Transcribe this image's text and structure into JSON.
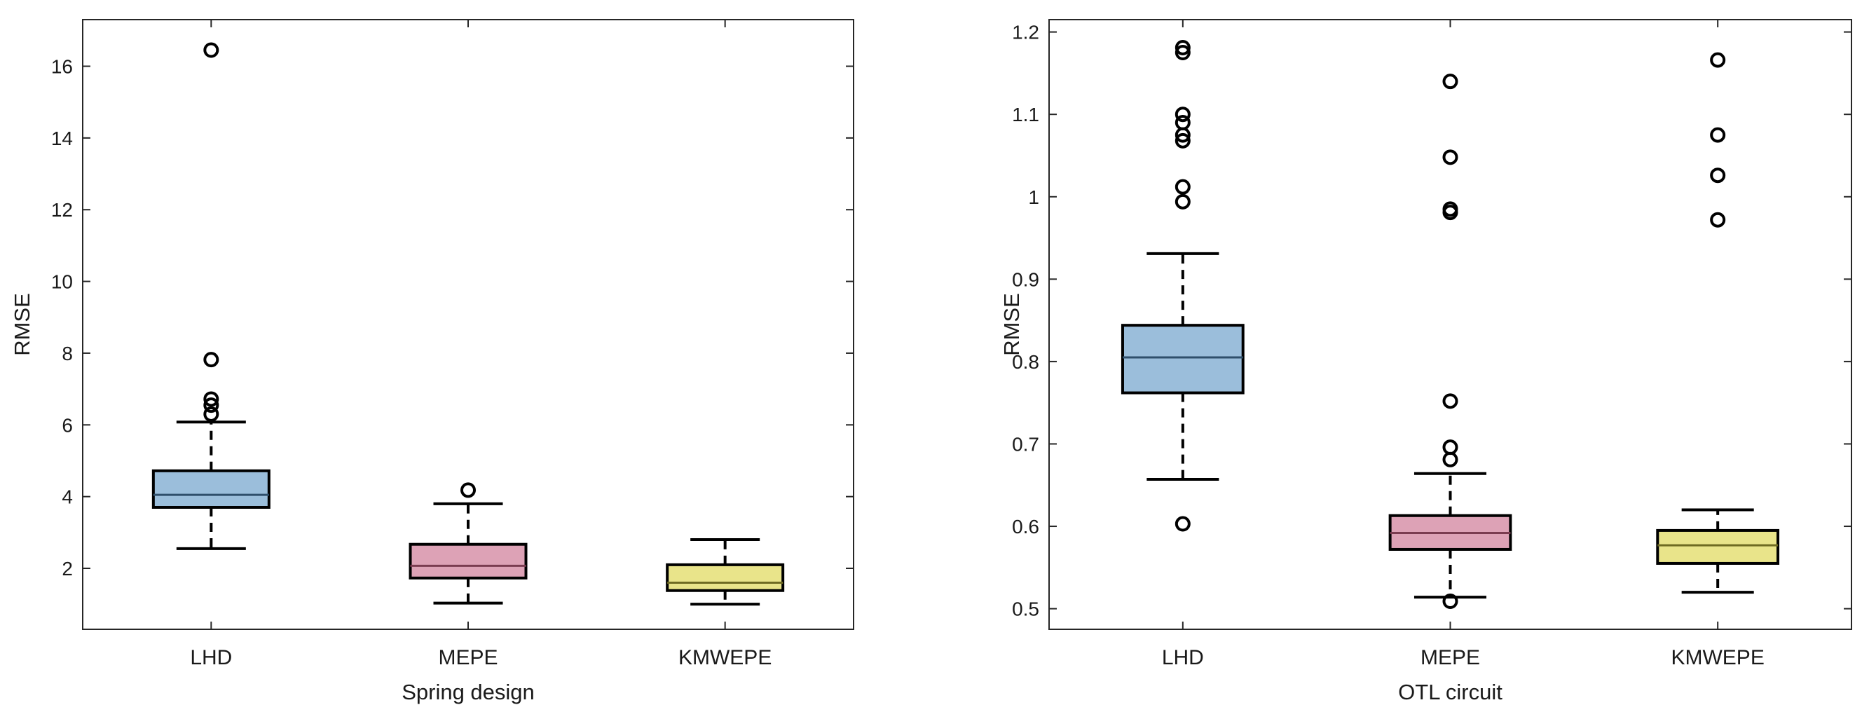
{
  "colors": {
    "lhd_fill": "#9bbedb",
    "mepe_fill": "#dda2b6",
    "kmwepe_fill": "#e9e48a",
    "axis": "#262626",
    "median_lhd": "#2f4f6b",
    "median_mepe": "#7a3c50",
    "median_kmwepe": "#6e6a22"
  },
  "chart_data": [
    {
      "type": "box",
      "xlabel": "Spring design",
      "ylabel": "RMSE",
      "ylim": [
        0.3,
        17.3
      ],
      "yticks": [
        2,
        4,
        6,
        8,
        10,
        12,
        14,
        16
      ],
      "ytick_labels": [
        "2",
        "4",
        "6",
        "8",
        "10",
        "12",
        "14",
        "16"
      ],
      "grid": false,
      "categories": [
        "LHD",
        "MEPE",
        "KMWEPE"
      ],
      "boxes": [
        {
          "name": "LHD",
          "whisker_low": 2.55,
          "q1": 3.7,
          "median": 4.05,
          "q3": 4.72,
          "whisker_high": 6.08,
          "outliers": [
            16.45,
            7.82,
            6.72,
            6.55,
            6.3
          ]
        },
        {
          "name": "MEPE",
          "whisker_low": 1.03,
          "q1": 1.73,
          "median": 2.07,
          "q3": 2.67,
          "whisker_high": 3.8,
          "outliers": [
            4.18
          ]
        },
        {
          "name": "KMWEPE",
          "whisker_low": 1.0,
          "q1": 1.38,
          "median": 1.6,
          "q3": 2.1,
          "whisker_high": 2.8,
          "outliers": []
        }
      ]
    },
    {
      "type": "box",
      "xlabel": "OTL circuit",
      "ylabel": "RMSE",
      "ylim": [
        0.475,
        1.215
      ],
      "yticks": [
        0.5,
        0.6,
        0.7,
        0.8,
        0.9,
        1.0,
        1.1,
        1.2
      ],
      "ytick_labels": [
        "0.5",
        "0.6",
        "0.7",
        "0.8",
        "0.9",
        "1",
        "1.1",
        "1.2"
      ],
      "grid": false,
      "categories": [
        "LHD",
        "MEPE",
        "KMWEPE"
      ],
      "boxes": [
        {
          "name": "LHD",
          "whisker_low": 0.657,
          "q1": 0.762,
          "median": 0.805,
          "q3": 0.844,
          "whisker_high": 0.931,
          "outliers": [
            1.181,
            1.175,
            1.1,
            1.09,
            1.075,
            1.068,
            1.012,
            0.994,
            0.603
          ]
        },
        {
          "name": "MEPE",
          "whisker_low": 0.514,
          "q1": 0.572,
          "median": 0.592,
          "q3": 0.613,
          "whisker_high": 0.664,
          "outliers": [
            1.14,
            1.048,
            0.985,
            0.981,
            0.752,
            0.696,
            0.681,
            0.509
          ]
        },
        {
          "name": "KMWEPE",
          "whisker_low": 0.52,
          "q1": 0.555,
          "median": 0.577,
          "q3": 0.595,
          "whisker_high": 0.62,
          "outliers": [
            1.166,
            1.075,
            1.026,
            0.972
          ]
        }
      ]
    }
  ]
}
